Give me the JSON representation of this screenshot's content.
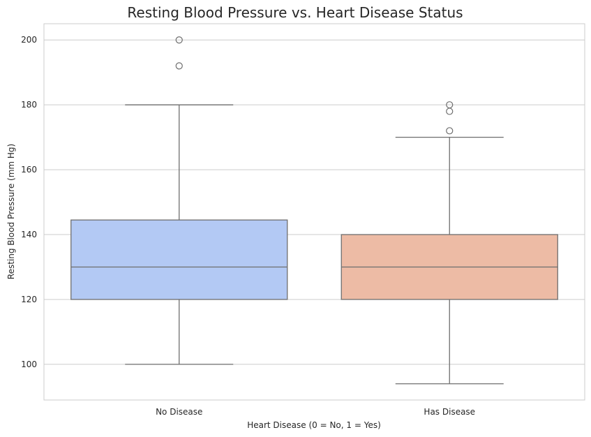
{
  "chart_data": {
    "type": "box",
    "title": "Resting Blood Pressure vs. Heart Disease Status",
    "xlabel": "Heart Disease (0 = No, 1 = Yes)",
    "ylabel": "Resting Blood Pressure (mm Hg)",
    "ylim": [
      89,
      205
    ],
    "yticks": [
      100,
      120,
      140,
      160,
      180,
      200
    ],
    "ytick_labels": [
      "100",
      "120",
      "140",
      "160",
      "180",
      "200"
    ],
    "grid": true,
    "categories": [
      "No Disease",
      "Has Disease"
    ],
    "boxes": [
      {
        "category": "No Disease",
        "min": 100,
        "q1": 120,
        "median": 130,
        "q3": 144.5,
        "max": 180,
        "outliers": [
          192,
          200
        ],
        "color": "#b3c9f4"
      },
      {
        "category": "Has Disease",
        "min": 94,
        "q1": 120,
        "median": 130,
        "q3": 140,
        "max": 170,
        "outliers": [
          172,
          178,
          180
        ],
        "color": "#edbba5"
      }
    ]
  }
}
